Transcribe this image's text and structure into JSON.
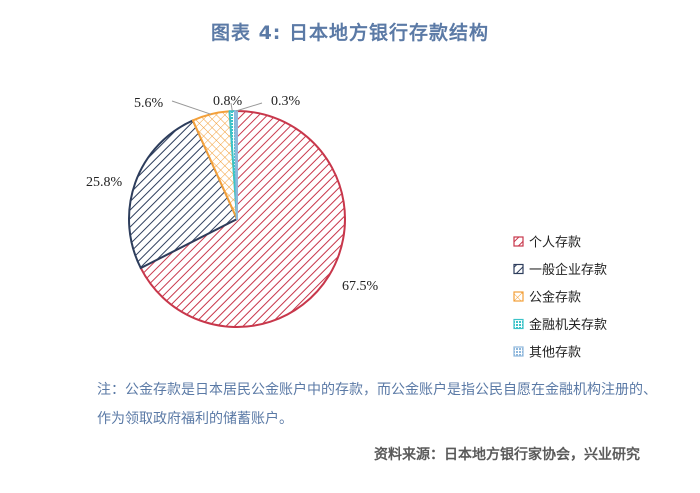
{
  "title": "图表 4: 日本地方银行存款结构",
  "note": "注：公金存款是日本居民公金账户中的存款，而公金账户是指公民自愿在金融机构注册的、作为领取政府福利的储蓄账户。",
  "source": "资料来源：日本地方银行家协会，兴业研究",
  "colors": {
    "title": "#5b7aa6",
    "note": "#5b7aa6",
    "source": "#5a5a5a"
  },
  "chart_data": {
    "type": "pie",
    "title": "图表 4: 日本地方银行存款结构",
    "legend_position": "right",
    "slices": [
      {
        "name": "个人存款",
        "value": 67.5,
        "label": "67.5%",
        "color": "#c8374b",
        "pattern": "diagonal"
      },
      {
        "name": "一般企业存款",
        "value": 25.8,
        "label": "25.8%",
        "color": "#2d3d5c",
        "pattern": "diagonal"
      },
      {
        "name": "公金存款",
        "value": 5.6,
        "label": "5.6%",
        "color": "#f3a03a",
        "pattern": "crosshatch"
      },
      {
        "name": "金融机关存款",
        "value": 0.8,
        "label": "0.8%",
        "color": "#3cc3c8",
        "pattern": "grid"
      },
      {
        "name": "其他存款",
        "value": 0.3,
        "label": "0.3%",
        "color": "#8fb8dc",
        "pattern": "grid"
      }
    ]
  }
}
